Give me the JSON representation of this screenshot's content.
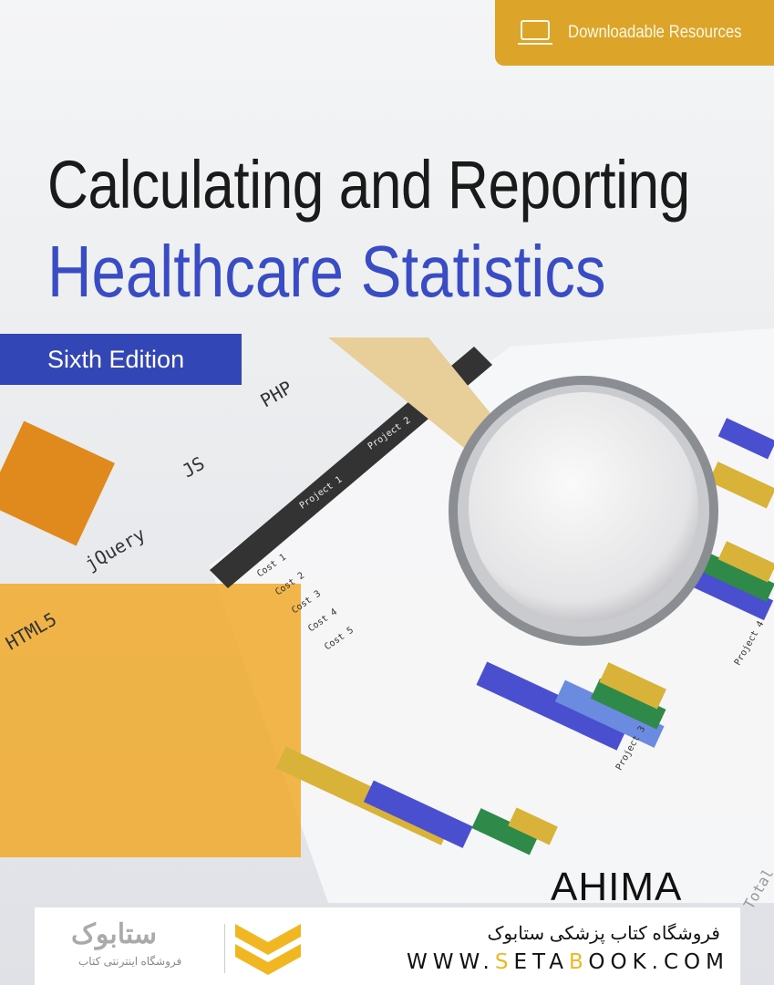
{
  "badge": {
    "label": "Downloadable Resources",
    "icon": "laptop-icon",
    "color": "#dca52a"
  },
  "title": {
    "line1": "Calculating and Reporting",
    "line2": "Healthcare Statistics",
    "line2_color": "#3a4cc4"
  },
  "edition": {
    "label": "Sixth Edition",
    "color": "#3346b5"
  },
  "background_labels": [
    "HTML5",
    "jQuery",
    "JS",
    "PHP",
    "Cost 1",
    "Cost 2",
    "Cost 3",
    "Cost 4",
    "Cost 5",
    "Project 1",
    "Project 2",
    "Project 3",
    "Project 4",
    "Total"
  ],
  "publisher": {
    "logo": "AHIMA"
  },
  "footer": {
    "store_name_fa": "فروشگاه کتاب پزشکی ستابوک",
    "url_parts": [
      "WWW.",
      "S",
      "ETA",
      "B",
      "OOK.COM"
    ],
    "logo_text_fa": "فروشگاه اینترنتی کتاب",
    "logo_word": "ستابوک",
    "accent_color": "#f0b722"
  }
}
